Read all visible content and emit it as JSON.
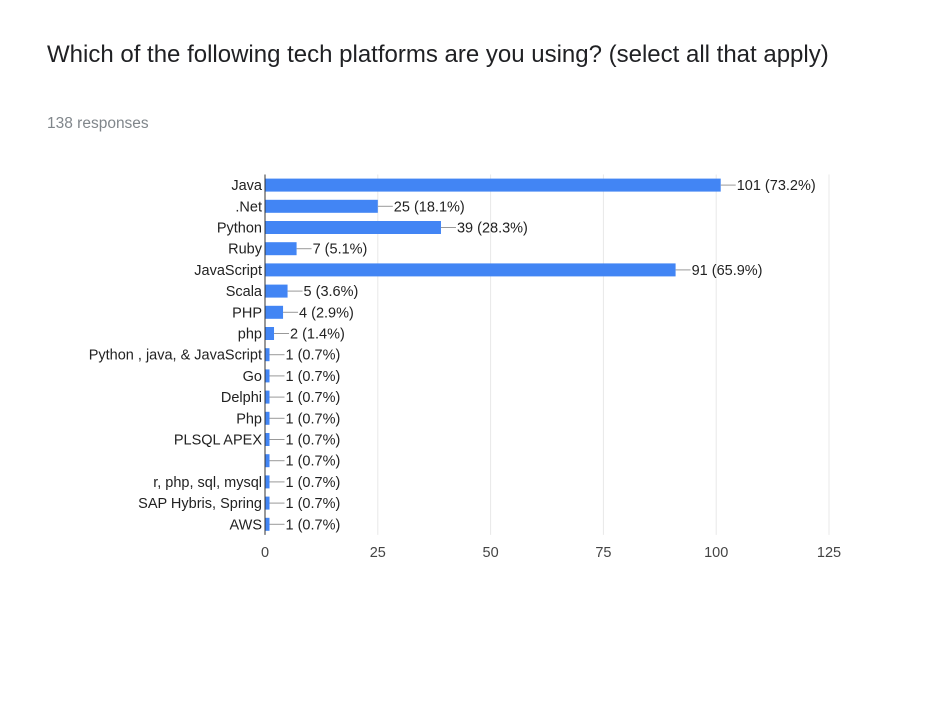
{
  "question": {
    "title": "Which of the following tech platforms are you using? (select all that apply)",
    "responses": "138 responses"
  },
  "chart_data": {
    "type": "bar",
    "orientation": "horizontal",
    "bar_color": "#4285f4",
    "categories": [
      "Java",
      ".Net",
      "Python",
      "Ruby",
      "JavaScript",
      "Scala",
      "PHP",
      "php",
      "Python , java, & JavaScript",
      "Go",
      "Delphi",
      "Php",
      "PLSQL APEX",
      "",
      "r, php, sql, mysql",
      "SAP Hybris, Spring",
      "AWS"
    ],
    "values": [
      101,
      25,
      39,
      7,
      91,
      5,
      4,
      2,
      1,
      1,
      1,
      1,
      1,
      1,
      1,
      1,
      1
    ],
    "data_labels": [
      "101 (73.2%)",
      "25 (18.1%)",
      "39 (28.3%)",
      "7 (5.1%)",
      "91 (65.9%)",
      "5 (3.6%)",
      "4 (2.9%)",
      "2 (1.4%)",
      "1 (0.7%)",
      "1 (0.7%)",
      "1 (0.7%)",
      "1 (0.7%)",
      "1 (0.7%)",
      "1 (0.7%)",
      "1 (0.7%)",
      "1 (0.7%)",
      "1 (0.7%)"
    ],
    "x_ticks": [
      0,
      25,
      50,
      75,
      100,
      125
    ],
    "xlim": [
      0,
      125
    ],
    "grid": true
  }
}
